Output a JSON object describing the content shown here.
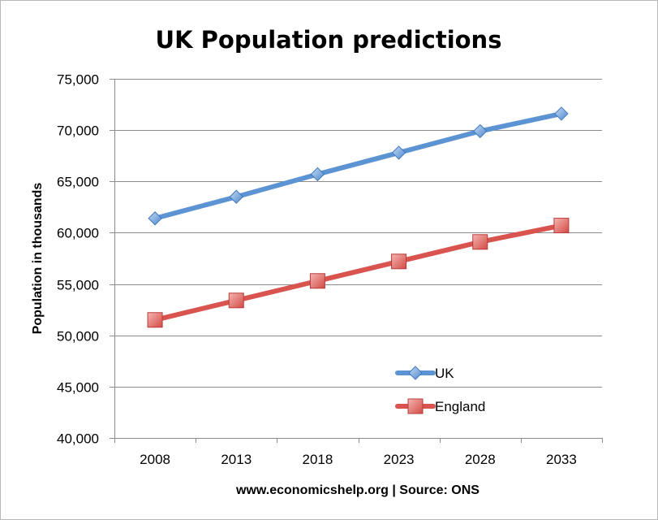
{
  "chart_data": {
    "type": "line",
    "title": "UK Population predictions",
    "xlabel": "www.economicshelp.org | Source: ONS",
    "ylabel": "Population in thousands",
    "categories": [
      "2008",
      "2013",
      "2018",
      "2023",
      "2028",
      "2033"
    ],
    "ylim": [
      40000,
      75000
    ],
    "yticks": [
      40000,
      45000,
      50000,
      55000,
      60000,
      65000,
      70000,
      75000
    ],
    "ytick_labels": [
      "40,000",
      "45,000",
      "50,000",
      "55,000",
      "60,000",
      "65,000",
      "70,000",
      "75,000"
    ],
    "grid": true,
    "legend_position": "inside lower-right",
    "series": [
      {
        "name": "UK",
        "values": [
          61400,
          63500,
          65700,
          67800,
          69900,
          71600
        ],
        "color": "#5b93d3",
        "marker": "diamond"
      },
      {
        "name": "England",
        "values": [
          51500,
          53400,
          55300,
          57200,
          59100,
          60700
        ],
        "color": "#d9534f",
        "marker": "square"
      }
    ]
  }
}
